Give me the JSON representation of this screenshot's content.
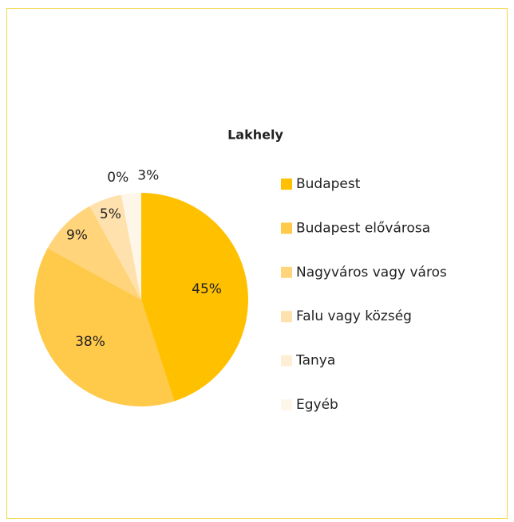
{
  "chart_data": {
    "type": "pie",
    "title": "Lakhely",
    "categories": [
      "Budapest",
      "Budapest elővárosa",
      "Nagyváros vagy város",
      "Falu vagy község",
      "Tanya",
      "Egyéb"
    ],
    "values": [
      45,
      38,
      9,
      5,
      0,
      3
    ],
    "value_labels": [
      "45%",
      "38%",
      "9%",
      "5%",
      "0%",
      "3%"
    ],
    "colors": [
      "#ffc000",
      "#ffc94a",
      "#ffd47a",
      "#ffe1ad",
      "#ffeed6",
      "#fff6ea"
    ],
    "legend": "right"
  }
}
